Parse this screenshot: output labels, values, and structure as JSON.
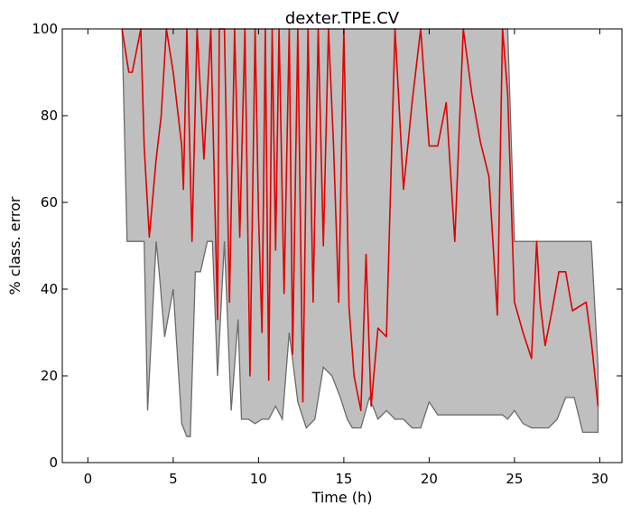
{
  "chart_data": {
    "type": "line",
    "title": "dexter.TPE.CV",
    "xlabel": "Time (h)",
    "ylabel": "% class. error",
    "xlim": [
      -1.5,
      31.3
    ],
    "ylim": [
      0,
      100
    ],
    "xticks": [
      0,
      5,
      10,
      15,
      20,
      25,
      30
    ],
    "yticks": [
      0,
      20,
      40,
      60,
      80,
      100
    ],
    "grid": false,
    "colors": {
      "band_fill": "#bfbfbf",
      "band_edge": "#6b6b6b",
      "mean_line": "#e00000"
    },
    "series": [
      {
        "role": "band",
        "x": [
          2.0,
          2.3,
          2.5,
          3.0,
          3.3,
          3.5,
          4.0,
          4.2,
          4.5,
          5.0,
          5.5,
          5.8,
          6.0,
          6.3,
          6.6,
          7.0,
          7.3,
          7.6,
          8.0,
          8.4,
          8.8,
          9.0,
          9.4,
          9.8,
          10.2,
          10.6,
          11.0,
          11.4,
          11.8,
          12.3,
          12.8,
          13.3,
          13.8,
          14.3,
          14.8,
          15.2,
          15.5,
          16.0,
          16.5,
          17.0,
          17.5,
          18.0,
          18.5,
          19.0,
          19.5,
          20.0,
          20.5,
          21.0,
          21.5,
          22.0,
          22.5,
          23.0,
          23.5,
          24.0,
          24.3,
          24.6,
          25.0,
          25.5,
          26.0,
          26.3,
          26.6,
          27.0,
          27.5,
          28.0,
          28.5,
          29.0,
          29.5,
          29.9
        ],
        "upper": [
          100,
          100,
          100,
          100,
          100,
          100,
          100,
          100,
          100,
          100,
          100,
          100,
          100,
          100,
          100,
          100,
          100,
          100,
          100,
          100,
          100,
          100,
          100,
          100,
          100,
          100,
          100,
          100,
          100,
          100,
          100,
          100,
          100,
          100,
          100,
          100,
          100,
          100,
          100,
          100,
          100,
          100,
          100,
          100,
          100,
          100,
          100,
          100,
          100,
          100,
          100,
          100,
          100,
          100,
          100,
          100,
          51,
          51,
          51,
          51,
          51,
          51,
          51,
          51,
          51,
          51,
          51,
          22
        ],
        "lower": [
          100,
          51,
          51,
          51,
          51,
          12,
          51,
          43,
          29,
          40,
          9,
          6,
          6,
          44,
          44,
          51,
          51,
          20,
          51,
          12,
          33,
          10,
          10,
          9,
          10,
          10,
          13,
          10,
          30,
          14,
          8,
          10,
          22,
          20,
          15,
          10,
          8,
          8,
          15,
          10,
          12,
          10,
          10,
          8,
          8,
          14,
          11,
          11,
          11,
          11,
          11,
          11,
          11,
          11,
          11,
          10,
          12,
          9,
          8,
          8,
          8,
          8,
          10,
          15,
          15,
          7,
          7,
          7
        ]
      },
      {
        "role": "mean",
        "x": [
          2.0,
          2.4,
          2.6,
          3.1,
          3.3,
          3.6,
          4.0,
          4.3,
          4.6,
          5.0,
          5.5,
          5.6,
          5.8,
          6.1,
          6.4,
          6.8,
          7.2,
          7.6,
          7.7,
          8.0,
          8.3,
          8.6,
          8.9,
          9.2,
          9.5,
          9.8,
          10.0,
          10.2,
          10.4,
          10.6,
          10.8,
          11.0,
          11.2,
          11.5,
          11.8,
          12.0,
          12.3,
          12.6,
          12.9,
          13.2,
          13.5,
          13.8,
          14.1,
          14.4,
          14.7,
          15.0,
          15.3,
          15.6,
          16.0,
          16.3,
          16.6,
          17.0,
          17.5,
          18.0,
          18.5,
          19.0,
          19.5,
          20.0,
          20.5,
          21.0,
          21.5,
          22.0,
          22.5,
          23.0,
          23.5,
          24.0,
          24.3,
          24.6,
          25.0,
          25.5,
          26.0,
          26.3,
          26.5,
          26.8,
          27.2,
          27.6,
          28.0,
          28.4,
          28.8,
          29.2,
          29.5,
          29.9
        ],
        "values": [
          100,
          90,
          90,
          100,
          73,
          52,
          70,
          80,
          100,
          90,
          73,
          63,
          100,
          51,
          100,
          70,
          100,
          33,
          100,
          100,
          37,
          100,
          52,
          100,
          20,
          100,
          57,
          30,
          100,
          19,
          100,
          49,
          100,
          39,
          100,
          25,
          100,
          14,
          100,
          37,
          100,
          50,
          100,
          73,
          37,
          100,
          36,
          20,
          12,
          48,
          13,
          31,
          29,
          100,
          63,
          83,
          100,
          73,
          73,
          83,
          51,
          100,
          85,
          74,
          66,
          34,
          100,
          85,
          37,
          30,
          24,
          51,
          37,
          27,
          35,
          44,
          44,
          35,
          36,
          37,
          28,
          13
        ]
      }
    ]
  }
}
